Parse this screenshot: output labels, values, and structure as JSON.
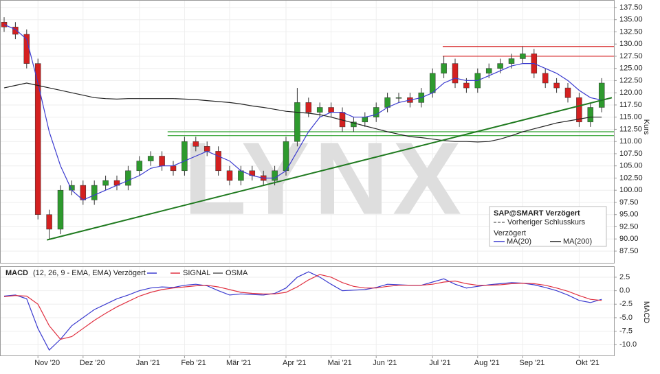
{
  "chart_data": [
    {
      "type": "candlestick",
      "open": [
        134.5,
        133.5,
        132,
        126,
        95,
        92,
        100,
        101,
        98,
        101,
        102,
        101,
        104,
        106,
        107,
        105,
        104,
        110,
        109,
        108,
        104,
        102,
        104,
        103,
        102,
        104,
        110,
        118,
        116,
        117,
        116,
        113,
        114,
        115,
        117,
        119,
        119,
        118,
        120,
        124,
        126,
        122,
        121,
        124,
        125,
        126,
        127,
        128,
        124,
        122,
        121,
        119,
        114,
        117
      ],
      "high": [
        135.5,
        134.5,
        133,
        127,
        96,
        101,
        102,
        102,
        102,
        103,
        103,
        105,
        107,
        108,
        108,
        106,
        111,
        111,
        110,
        109,
        105,
        105,
        105,
        104,
        105,
        111,
        121,
        119,
        118,
        118,
        117,
        115,
        116,
        118,
        120,
        120,
        120,
        121,
        125,
        127.5,
        127,
        123,
        125,
        126,
        127,
        128,
        129.5,
        129,
        125,
        123,
        122,
        120,
        118,
        123
      ],
      "low": [
        132.5,
        131,
        125,
        94,
        90,
        91,
        99,
        97,
        97,
        100,
        100,
        100,
        103,
        105,
        104,
        103,
        103,
        108,
        107,
        103,
        101,
        101,
        102,
        101,
        101,
        103,
        109,
        115,
        115,
        115,
        112,
        112,
        113,
        114,
        116,
        118,
        117,
        117,
        119,
        123,
        121,
        120,
        120,
        123,
        124,
        125,
        126,
        123,
        121,
        120,
        118,
        113,
        113,
        116
      ],
      "close": [
        133.5,
        132,
        126,
        95,
        92,
        100,
        101,
        98,
        101,
        102,
        101,
        104,
        106,
        107,
        105,
        104,
        110,
        109,
        108,
        104,
        102,
        104,
        103,
        102,
        104,
        110,
        118,
        116,
        117,
        116,
        113,
        114,
        115,
        117,
        119,
        119,
        118,
        120,
        124,
        126,
        122,
        121,
        124,
        125,
        126,
        127,
        128,
        124,
        122,
        121,
        119,
        114,
        117,
        122
      ],
      "up_color": "#2e9a2e",
      "down_color": "#d42020",
      "series": [
        {
          "name": "MA(20)",
          "color": "#3a3acf",
          "values": [
            134,
            133,
            131,
            122,
            112,
            105,
            100,
            98,
            99,
            100,
            101,
            102,
            103,
            104.5,
            105,
            105,
            106,
            107,
            108,
            107,
            106,
            104,
            103,
            102.5,
            102.5,
            104,
            108,
            112,
            115,
            116,
            116,
            115,
            115,
            115.5,
            117,
            118,
            118.5,
            119,
            120,
            122,
            123,
            122.5,
            122.5,
            123.5,
            124.5,
            125.5,
            126,
            126,
            125,
            124,
            122.5,
            120.5,
            119,
            118.5
          ]
        },
        {
          "name": "MA(200)",
          "color": "#222222",
          "values": [
            121,
            121.5,
            122,
            121.5,
            121,
            120.5,
            120,
            119.5,
            119,
            118.8,
            118.7,
            118.8,
            118.8,
            118.8,
            118.8,
            118.8,
            118.7,
            118.6,
            118.4,
            118.2,
            118,
            117.7,
            117.3,
            117,
            116.6,
            116.2,
            116,
            115.8,
            115.5,
            115,
            114.4,
            113.8,
            113.2,
            112.6,
            112,
            111.5,
            111,
            110.8,
            110.5,
            110.2,
            110,
            110,
            109.9,
            110,
            110.5,
            111.2,
            112,
            112.6,
            113.2,
            113.8,
            114.2,
            114.6,
            115,
            115
          ]
        }
      ],
      "levels": [
        {
          "value": 129.5,
          "from": 38.9,
          "color": "#d62728"
        },
        {
          "value": 127.5,
          "from": 38.9,
          "color": "#d62728"
        },
        {
          "value": 112,
          "from": 14.5,
          "color": "#2ca02c"
        },
        {
          "value": 111.2,
          "from": 14.5,
          "color": "#2ca02c"
        }
      ],
      "trend_line": {
        "x": [
          3.8,
          53.9
        ],
        "y": [
          89.8,
          119
        ],
        "color": "#1f7a1f"
      },
      "ylim": [
        85.1,
        138.9
      ],
      "yticks": [
        {
          "value": 87.5,
          "label": "87.50"
        },
        {
          "value": 90,
          "label": "90.00"
        },
        {
          "value": 92.5,
          "label": "92.50"
        },
        {
          "value": 95,
          "label": "95.00"
        },
        {
          "value": 97.5,
          "label": "97.50"
        },
        {
          "value": 100,
          "label": "100.00"
        },
        {
          "value": 102.5,
          "label": "102.50"
        },
        {
          "value": 105,
          "label": "105.00"
        },
        {
          "value": 107.5,
          "label": "107.50"
        },
        {
          "value": 110,
          "label": "110.00"
        },
        {
          "value": 112.5,
          "label": "112.50"
        },
        {
          "value": 115,
          "label": "115.00"
        },
        {
          "value": 117.5,
          "label": "117.50"
        },
        {
          "value": 120,
          "label": "120.00"
        },
        {
          "value": 122.5,
          "label": "122.50"
        },
        {
          "value": 125,
          "label": "125.00"
        },
        {
          "value": 127.5,
          "label": "127.50"
        },
        {
          "value": 130,
          "label": "130.00"
        },
        {
          "value": 132.5,
          "label": "132.50"
        },
        {
          "value": 135,
          "label": "135.00"
        },
        {
          "value": 137.5,
          "label": "137.50"
        }
      ],
      "grid": true,
      "ylabel": "Kurs",
      "watermark": "LYNX",
      "legend": {
        "title": "SAP@SMART Verzögert",
        "previous": "Vorheriger Schlusskurs",
        "subtitle": "Verzögert"
      }
    },
    {
      "type": "line",
      "title": "MACD",
      "subtitle": "(12, 26, 9 - EMA, EMA) Verzögert",
      "categories": [
        null,
        null,
        null,
        "Nov '20",
        null,
        null,
        null,
        "Dez '20",
        null,
        null,
        null,
        null,
        "Jan '21",
        null,
        null,
        null,
        "Feb '21",
        null,
        null,
        null,
        "Mär '21",
        null,
        null,
        null,
        null,
        "Apr '21",
        null,
        null,
        null,
        "Mai '21",
        null,
        null,
        null,
        "Jun '21",
        null,
        null,
        null,
        null,
        "Jul '21",
        null,
        null,
        null,
        "Aug '21",
        null,
        null,
        null,
        "Sep '21",
        null,
        null,
        null,
        null,
        "Okt '21",
        null,
        null
      ],
      "series": [
        {
          "name": "MACD",
          "color": "#3a3acf",
          "values": [
            -1,
            -0.8,
            -1.5,
            -7,
            -11,
            -9,
            -6.5,
            -5,
            -3.5,
            -2.5,
            -1.5,
            -0.8,
            0,
            0.5,
            0.7,
            0.6,
            1,
            1.2,
            0.9,
            0,
            -0.8,
            -0.6,
            -0.7,
            -0.8,
            -0.5,
            0.5,
            2.5,
            3.5,
            2.5,
            1.2,
            0,
            0.1,
            0.2,
            0.6,
            1.2,
            1.1,
            1,
            1,
            1.6,
            2.2,
            1.2,
            0.5,
            0.8,
            1.1,
            1.3,
            1.5,
            1.4,
            1.1,
            0.6,
            0,
            -0.8,
            -1.8,
            -2.2,
            -1.6
          ]
        },
        {
          "name": "SIGNAL",
          "color": "#e03040",
          "values": [
            -1.1,
            -0.9,
            -1,
            -2.5,
            -6.5,
            -9,
            -8.5,
            -7,
            -5.5,
            -4.2,
            -3,
            -2,
            -1,
            -0.3,
            0.2,
            0.5,
            0.7,
            0.9,
            1,
            0.7,
            0.2,
            -0.3,
            -0.5,
            -0.6,
            -0.6,
            -0.3,
            0.7,
            2,
            3,
            2.5,
            1.5,
            0.8,
            0.5,
            0.5,
            0.8,
            1,
            1,
            1,
            1.2,
            1.6,
            1.8,
            1.3,
            1,
            1,
            1.1,
            1.3,
            1.4,
            1.3,
            1,
            0.5,
            -0.1,
            -0.9,
            -1.6,
            -1.8
          ]
        }
      ],
      "extra_legend": {
        "name": "OSMA",
        "color": "#555555"
      },
      "ylim": [
        -12,
        4.4
      ],
      "yticks": [
        2.5,
        {
          "value": 0,
          "label": "0.0"
        },
        -2.5,
        {
          "value": -5,
          "label": "-5.0"
        },
        -7.5,
        {
          "value": -10,
          "label": "-10.0"
        }
      ],
      "grid": true,
      "ylabel": "MACD"
    }
  ]
}
